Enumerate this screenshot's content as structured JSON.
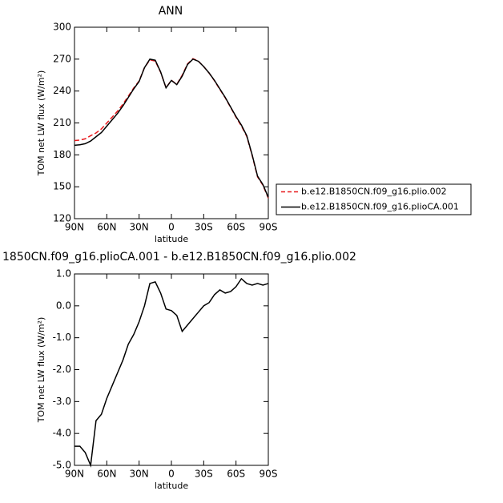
{
  "chart_data": [
    {
      "type": "line",
      "title": "ANN",
      "x": [
        90,
        85,
        80,
        75,
        70,
        65,
        60,
        55,
        50,
        45,
        40,
        35,
        30,
        25,
        20,
        15,
        10,
        5,
        0,
        -5,
        -10,
        -15,
        -20,
        -25,
        -30,
        -35,
        -40,
        -45,
        -50,
        -55,
        -60,
        -65,
        -70,
        -75,
        -80,
        -85,
        -90
      ],
      "series": [
        {
          "name": "b.e12.B1850CN.f09_g16.plio.002",
          "color": "#e8191c",
          "dash": true,
          "values": [
            193.4,
            193.9,
            195.1,
            198,
            200.6,
            204.4,
            209.9,
            215.5,
            221.1,
            227.7,
            235.2,
            242.9,
            249.5,
            262,
            269.3,
            268.25,
            257.6,
            243.1,
            250.15,
            246.3,
            254.8,
            265.6,
            270.4,
            268.2,
            263,
            256.9,
            249.65,
            241.5,
            233.6,
            224.55,
            215.4,
            207.15,
            197.3,
            179.35,
            159.3,
            151.35,
            139.3
          ]
        },
        {
          "name": "b.e12.B1850CN.f09_g16.plioCA.001",
          "color": "#000000",
          "dash": false,
          "values": [
            189,
            189.5,
            190.5,
            193,
            197,
            201,
            207,
            213,
            219,
            226,
            234,
            242,
            249,
            262,
            270,
            269,
            258,
            243,
            250,
            246,
            254,
            265,
            270,
            268,
            263,
            257,
            250,
            242,
            234,
            225,
            216,
            208,
            198,
            180,
            160,
            152,
            140
          ]
        }
      ],
      "xlim": [
        90,
        -90
      ],
      "xticks": [
        {
          "value": 90,
          "label": "90N"
        },
        {
          "value": 60,
          "label": "60N"
        },
        {
          "value": 30,
          "label": "30N"
        },
        0,
        {
          "value": -30,
          "label": "30S"
        },
        {
          "value": -60,
          "label": "60S"
        },
        {
          "value": -90,
          "label": "90S"
        }
      ],
      "ylim": [
        120,
        300
      ],
      "yticks": [
        120,
        150,
        180,
        210,
        240,
        270,
        300
      ],
      "x_label": "latitude",
      "y_label": "TOM net LW flux (W/m²)",
      "legend": "right"
    },
    {
      "type": "line",
      "title": "1850CN.f09_g16.plioCA.001 - b.e12.B1850CN.f09_g16.plio.002",
      "x": [
        90,
        85,
        80,
        75,
        70,
        65,
        60,
        55,
        50,
        45,
        40,
        35,
        30,
        25,
        20,
        15,
        10,
        5,
        0,
        -5,
        -10,
        -15,
        -20,
        -25,
        -30,
        -35,
        -40,
        -45,
        -50,
        -55,
        -60,
        -65,
        -70,
        -75,
        -80,
        -85,
        -90
      ],
      "values": [
        -4.4,
        -4.4,
        -4.6,
        -5.0,
        -3.6,
        -3.4,
        -2.9,
        -2.5,
        -2.1,
        -1.7,
        -1.2,
        -0.9,
        -0.5,
        0.0,
        0.7,
        0.75,
        0.4,
        -0.1,
        -0.15,
        -0.3,
        -0.8,
        -0.6,
        -0.4,
        -0.2,
        0.0,
        0.1,
        0.35,
        0.5,
        0.4,
        0.45,
        0.6,
        0.85,
        0.7,
        0.65,
        0.7,
        0.65,
        0.7
      ],
      "color": "#000000",
      "xlim": [
        90,
        -90
      ],
      "xticks": [
        {
          "value": 90,
          "label": "90N"
        },
        {
          "value": 60,
          "label": "60N"
        },
        {
          "value": 30,
          "label": "30N"
        },
        0,
        {
          "value": -30,
          "label": "30S"
        },
        {
          "value": -60,
          "label": "60S"
        },
        {
          "value": -90,
          "label": "90S"
        }
      ],
      "ylim": [
        -5,
        1
      ],
      "yticks": [
        {
          "value": -5,
          "label": "-5.0"
        },
        {
          "value": -4,
          "label": "-4.0"
        },
        {
          "value": -3,
          "label": "-3.0"
        },
        {
          "value": -2,
          "label": "-2.0"
        },
        {
          "value": -1,
          "label": "-1.0"
        },
        {
          "value": 0,
          "label": "0.0"
        },
        {
          "value": 1,
          "label": "1.0"
        }
      ],
      "x_label": "latitude",
      "y_label": "TOM net LW flux (W/m²)"
    }
  ]
}
